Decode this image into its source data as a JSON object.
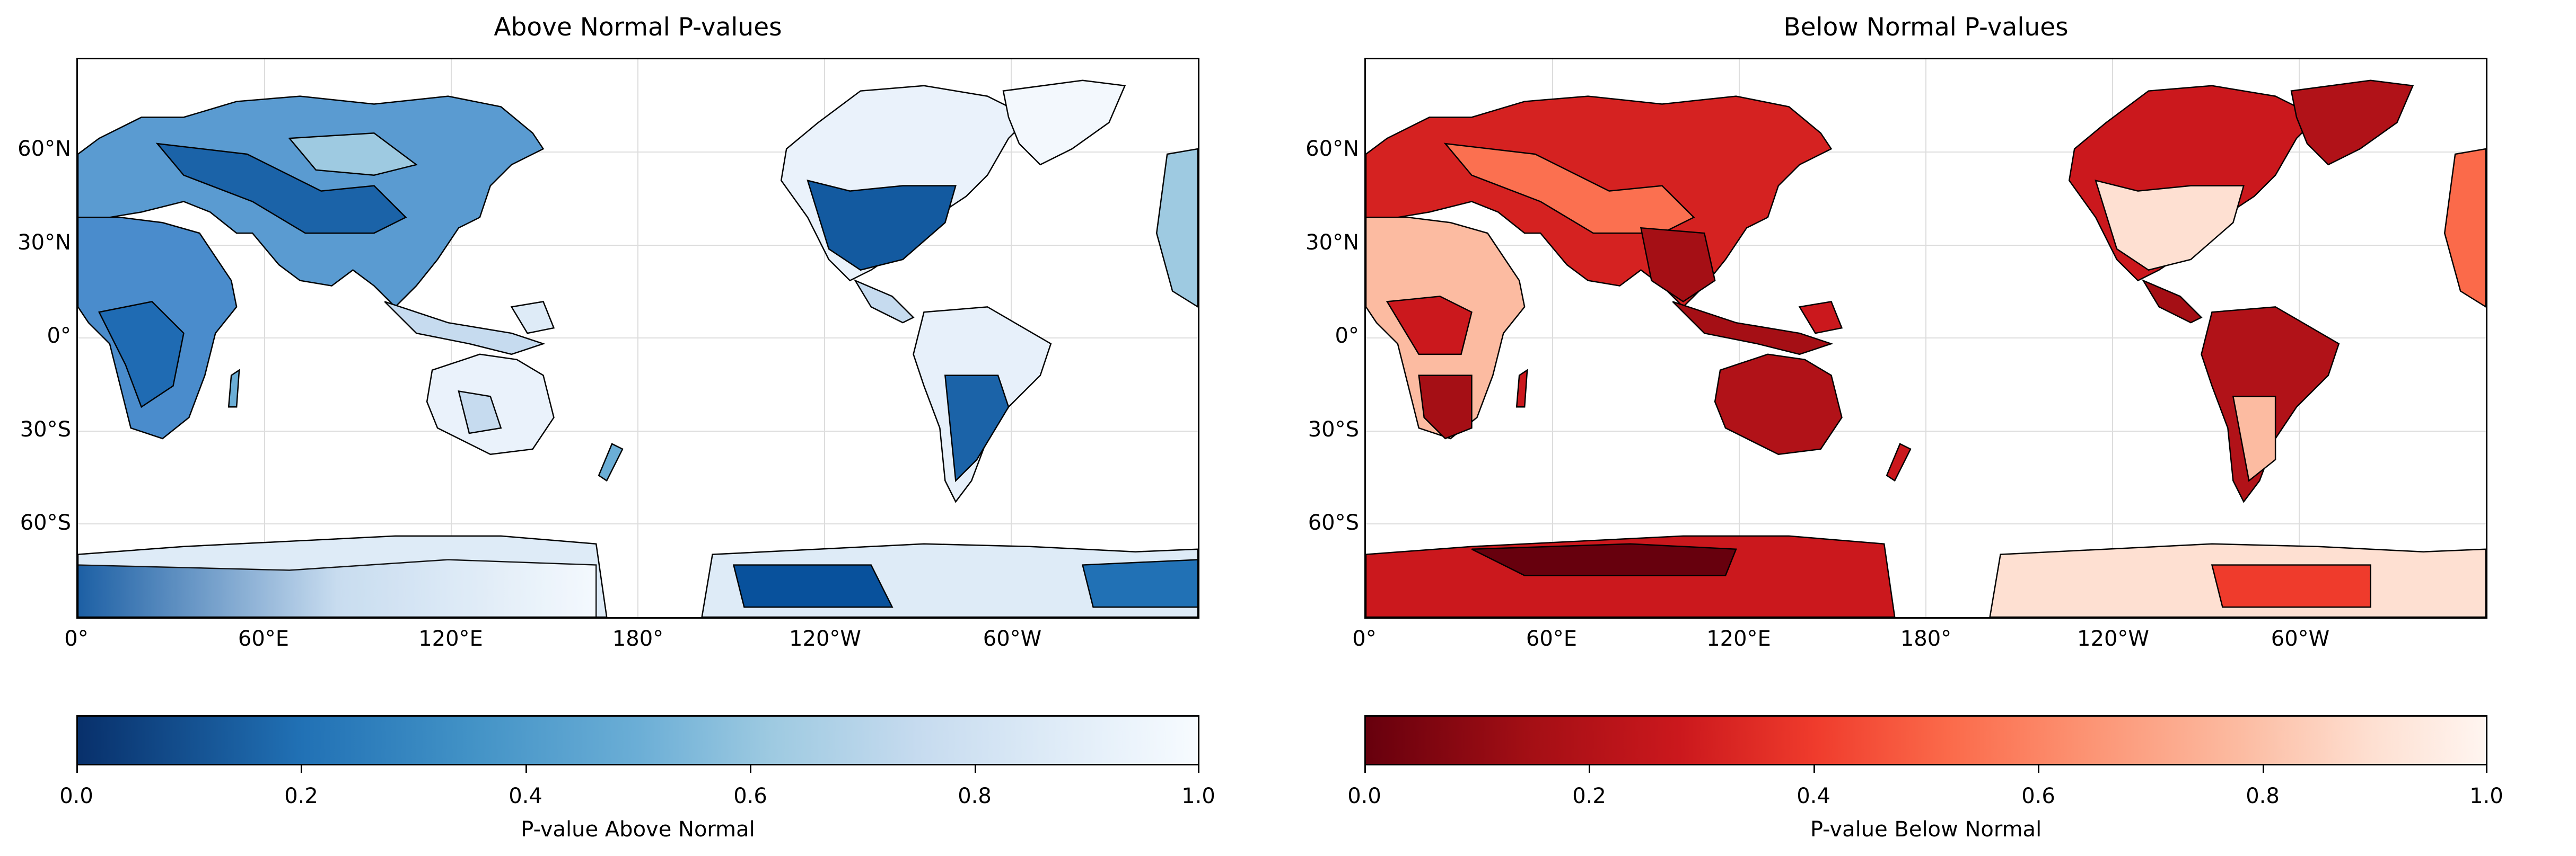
{
  "maps": [
    {
      "title": "Above Normal P-values",
      "colorbar_label": "P-value Above Normal",
      "colormap": "Blues_r",
      "color_low": "#08306b",
      "color_mid": "#6baed6",
      "color_high": "#f7fbff",
      "colorbar_ticks": [
        "0.0",
        "0.2",
        "0.4",
        "0.6",
        "0.8",
        "1.0"
      ],
      "lat_labels": [
        "60°N",
        "30°N",
        "0°",
        "30°S",
        "60°S"
      ],
      "lon_labels": [
        "0°",
        "60°E",
        "120°E",
        "180°",
        "120°W",
        "60°W"
      ]
    },
    {
      "title": "Below Normal P-values",
      "colorbar_label": "P-value Below Normal",
      "colormap": "Reds_r",
      "color_low": "#67000d",
      "color_mid": "#fb6a4a",
      "color_high": "#fff5f0",
      "colorbar_ticks": [
        "0.0",
        "0.2",
        "0.4",
        "0.6",
        "0.8",
        "1.0"
      ],
      "lat_labels": [
        "60°N",
        "30°N",
        "0°",
        "30°S",
        "60°S"
      ],
      "lon_labels": [
        "0°",
        "60°E",
        "120°E",
        "180°",
        "120°W",
        "60°W"
      ]
    }
  ]
}
